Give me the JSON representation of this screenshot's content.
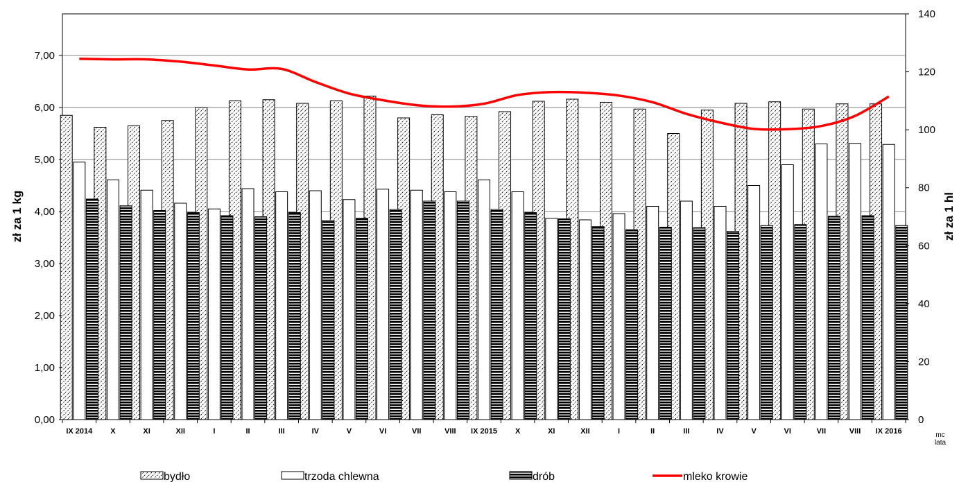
{
  "chart_data": {
    "type": "bar",
    "categories": [
      "IX 2014",
      "X",
      "XI",
      "XII",
      "I",
      "II",
      "III",
      "IV",
      "V",
      "VI",
      "VII",
      "VIII",
      "IX 2015",
      "X",
      "XI",
      "XII",
      "I",
      "II",
      "III",
      "IV",
      "V",
      "VI",
      "VII",
      "VIII",
      "IX 2016"
    ],
    "series": [
      {
        "name": "bydło",
        "kind": "bar",
        "axis": "left",
        "pattern": "diagonal-hatch",
        "values": [
          5.85,
          5.62,
          5.65,
          5.75,
          6.0,
          6.13,
          6.15,
          6.08,
          6.13,
          6.22,
          5.8,
          5.86,
          5.83,
          5.92,
          6.12,
          6.16,
          6.1,
          5.97,
          5.5,
          5.95,
          6.08,
          6.11,
          5.97,
          6.07,
          6.07
        ]
      },
      {
        "name": "trzoda chlewna",
        "kind": "bar",
        "axis": "left",
        "pattern": "white",
        "values": [
          4.95,
          4.61,
          4.41,
          4.16,
          4.05,
          4.44,
          4.38,
          4.4,
          4.23,
          4.43,
          4.41,
          4.38,
          4.61,
          4.38,
          3.87,
          3.84,
          3.96,
          4.1,
          4.2,
          4.1,
          4.5,
          4.9,
          5.3,
          5.31,
          5.29
        ]
      },
      {
        "name": "drób",
        "kind": "bar",
        "axis": "left",
        "pattern": "horizontal-stripes",
        "values": [
          4.24,
          4.11,
          4.02,
          3.98,
          3.92,
          3.9,
          3.98,
          3.83,
          3.87,
          4.04,
          4.2,
          4.2,
          4.04,
          3.98,
          3.86,
          3.71,
          3.65,
          3.7,
          3.69,
          3.62,
          3.73,
          3.75,
          3.91,
          3.92,
          3.73
        ]
      },
      {
        "name": "mleko krowie",
        "kind": "line",
        "axis": "right",
        "color": "#ff0000",
        "values": [
          124.5,
          124.3,
          124.3,
          123.5,
          122.2,
          120.8,
          121.0,
          116.5,
          112.5,
          110.2,
          108.5,
          108.0,
          109.0,
          112.0,
          113.0,
          112.8,
          111.8,
          109.5,
          105.5,
          102.5,
          100.3,
          100.2,
          101.3,
          104.8,
          111.5
        ]
      }
    ],
    "ylabel": "zł za 1 kg",
    "ylabel_right": "zł za 1 hl",
    "xlabel": "",
    "x_corner_note": [
      "mc",
      "lata"
    ],
    "ylim": [
      0,
      7.8
    ],
    "ylim_right": [
      0,
      140
    ],
    "yticks": [
      "0,00",
      "1,00",
      "2,00",
      "3,00",
      "4,00",
      "5,00",
      "6,00",
      "7,00"
    ],
    "yticks_right": [
      "0",
      "20",
      "40",
      "60",
      "80",
      "100",
      "120",
      "140"
    ],
    "grid": true,
    "legend_position": "bottom"
  }
}
